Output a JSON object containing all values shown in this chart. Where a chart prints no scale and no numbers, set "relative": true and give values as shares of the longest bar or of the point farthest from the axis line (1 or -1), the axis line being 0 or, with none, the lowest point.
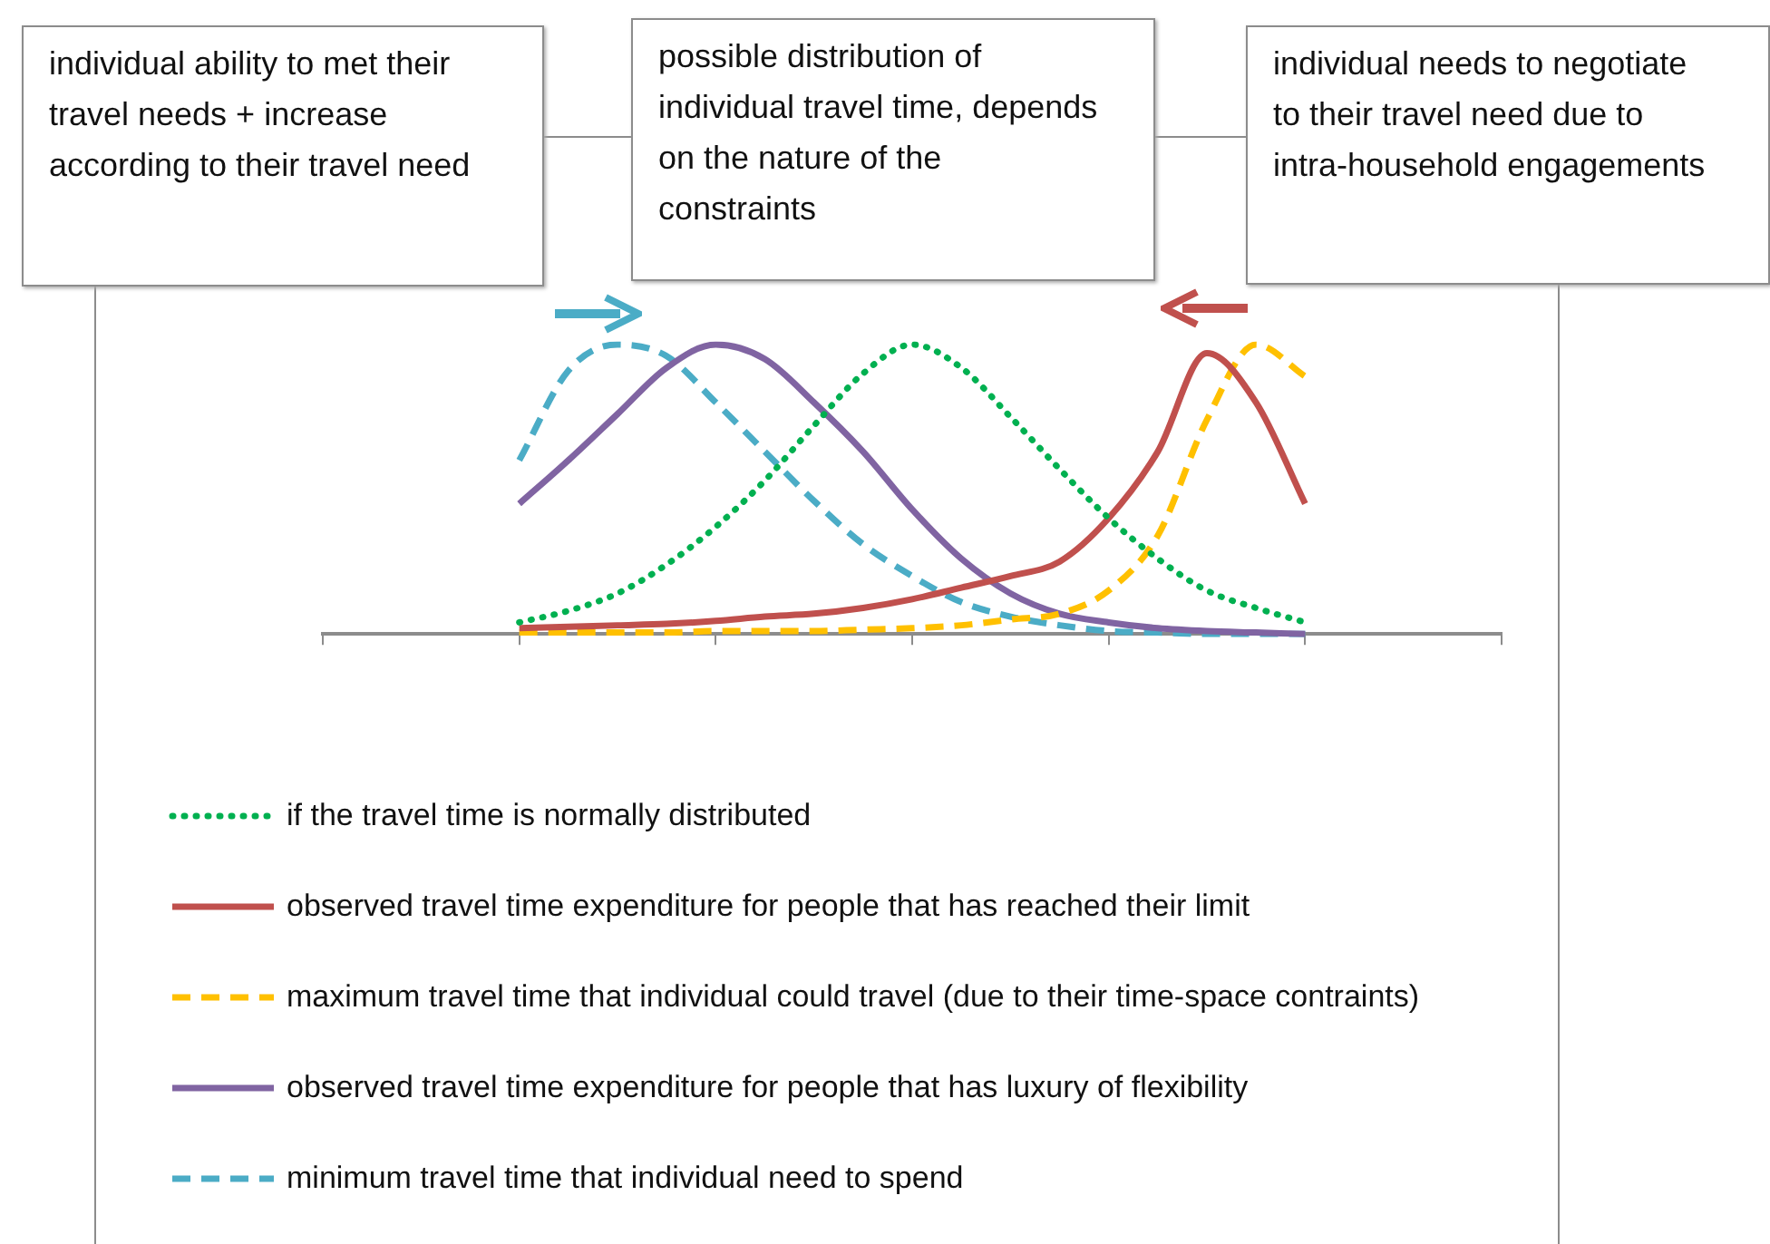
{
  "chart_data": {
    "type": "line",
    "relative": true,
    "marker": "none",
    "legend": "bottom",
    "grid": false,
    "categories": [
      null,
      null,
      null,
      null,
      null,
      null,
      null,
      null,
      null,
      null,
      null,
      null,
      null,
      null,
      null,
      null,
      null,
      null,
      null,
      null,
      null,
      null,
      null,
      null,
      null
    ],
    "annotations": [
      "individual ability to met their travel needs + increase according to their travel need",
      "possible distribution of individual travel time, depends on the nature of the constraints",
      "individual needs to negotiate to their travel need due to intra-household engagements"
    ],
    "series": [
      {
        "name": "if the travel time is normally distributed",
        "color": "#00b050",
        "line_style": "dotted",
        "values": [
          null,
          null,
          null,
          null,
          0.04,
          0.08,
          0.14,
          0.24,
          0.37,
          0.53,
          0.72,
          0.9,
          1,
          0.92,
          0.75,
          0.57,
          0.4,
          0.26,
          0.15,
          0.09,
          0.04,
          null,
          null,
          null,
          null
        ]
      },
      {
        "name": "observed travel time expenditure for people that has reached their limit",
        "color": "#c0504d",
        "line_style": "solid",
        "values": [
          null,
          null,
          null,
          null,
          0.02,
          0.025,
          0.03,
          0.035,
          0.045,
          0.06,
          0.07,
          0.09,
          0.12,
          0.16,
          0.2,
          0.25,
          0.4,
          0.63,
          0.97,
          0.8,
          0.45,
          null,
          null,
          null,
          null
        ]
      },
      {
        "name": "maximum travel time that individual could travel (due to their time-space contraints)",
        "color": "#ffc000",
        "line_style": "dashed",
        "values": [
          null,
          null,
          null,
          null,
          0.005,
          0.005,
          0.005,
          0.005,
          0.01,
          0.01,
          0.01,
          0.015,
          0.02,
          0.03,
          0.05,
          0.07,
          0.15,
          0.34,
          0.74,
          1,
          0.89,
          null,
          null,
          null,
          null
        ]
      },
      {
        "name": "observed travel time expenditure for people that has luxury of flexibility",
        "color": "#8064a2",
        "line_style": "solid",
        "values": [
          null,
          null,
          null,
          null,
          0.45,
          0.6,
          0.76,
          0.92,
          1,
          0.95,
          0.8,
          0.63,
          0.43,
          0.26,
          0.14,
          0.07,
          0.04,
          0.02,
          0.01,
          0.005,
          0,
          null,
          null,
          null,
          null
        ]
      },
      {
        "name": "minimum travel time that individual need to spend",
        "color": "#4bacc6",
        "line_style": "dashed",
        "values": [
          null,
          null,
          null,
          null,
          0.6,
          0.91,
          1,
          0.96,
          0.8,
          0.63,
          0.46,
          0.31,
          0.2,
          0.11,
          0.06,
          0.03,
          0.01,
          0.005,
          0,
          0,
          0,
          null,
          null,
          null,
          null
        ]
      }
    ]
  }
}
